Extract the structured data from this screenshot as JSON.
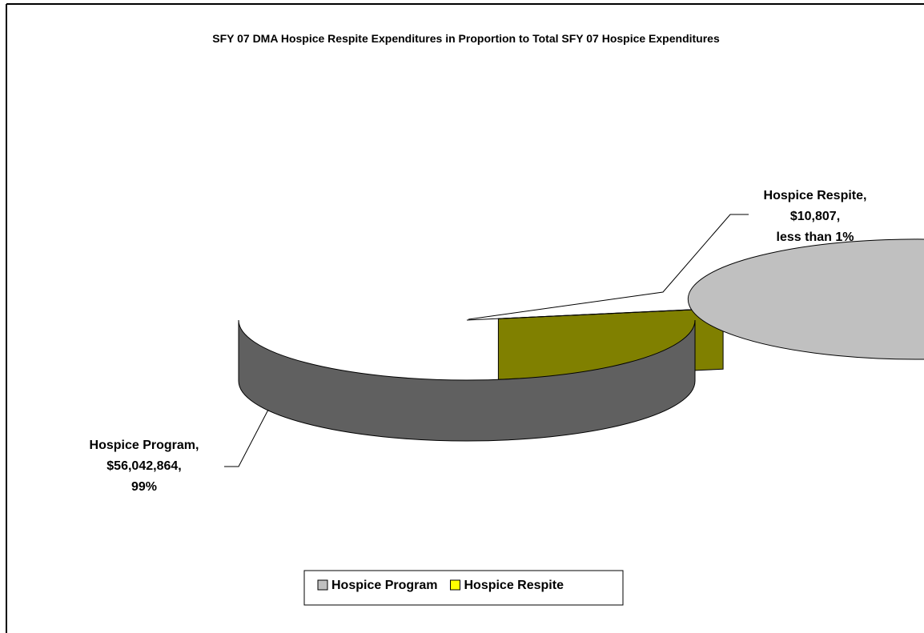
{
  "chart_data": {
    "type": "pie",
    "title": "SFY 07 DMA Hospice Respite Expenditures in Proportion to Total SFY 07 Hospice Expenditures",
    "categories": [
      "Hospice Program",
      "Hospice Respite"
    ],
    "values": [
      56042864,
      10807
    ],
    "colors": [
      "#c0c0c0",
      "#ffff00"
    ],
    "data_labels": [
      [
        "Hospice Program,",
        "$56,042,864,",
        "99%"
      ],
      [
        "Hospice Respite,",
        "$10,807,",
        "less than 1%"
      ]
    ],
    "three_d": true,
    "exploded": [
      false,
      true
    ],
    "legend": "bottom"
  }
}
